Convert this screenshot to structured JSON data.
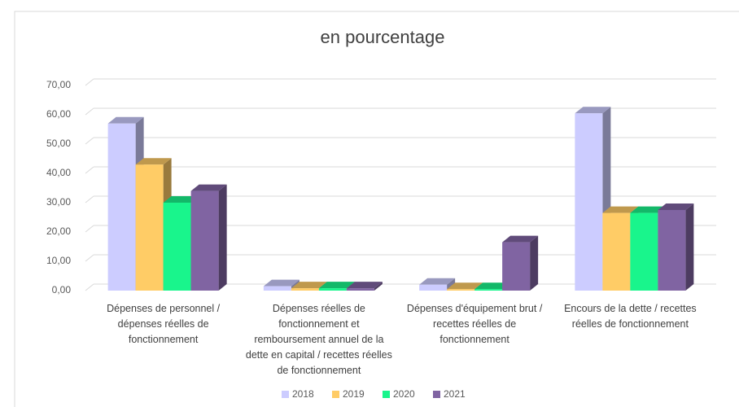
{
  "chart_data": {
    "type": "bar3d",
    "title": "en pourcentage",
    "categories": [
      "Dépenses de personnel / dépenses réelles de fonctionnement",
      "Dépenses réelles de fonctionnement et remboursement annuel de la dette en capital / recettes réelles de fonctionnement",
      "Dépenses d'équipement brut / recettes réelles de fonctionnement",
      "Encours de la dette / recettes réelles de fonctionnement"
    ],
    "series": [
      {
        "name": "2018",
        "color": "#ccccff",
        "values": [
          57,
          1.5,
          2,
          60.5
        ]
      },
      {
        "name": "2019",
        "color": "#ffcc66",
        "values": [
          43,
          0.8,
          0.5,
          26.5
        ]
      },
      {
        "name": "2020",
        "color": "#19f58c",
        "values": [
          30,
          0.8,
          0.5,
          26.5
        ]
      },
      {
        "name": "2021",
        "color": "#8064a2",
        "values": [
          34,
          0.8,
          16.5,
          27.5
        ]
      }
    ],
    "ylim": [
      0,
      70
    ],
    "yticks": [
      {
        "value": 0,
        "label": "0,00"
      },
      {
        "value": 10,
        "label": "10,00"
      },
      {
        "value": 20,
        "label": "20,00"
      },
      {
        "value": 30,
        "label": "30,00"
      },
      {
        "value": 40,
        "label": "40,00"
      },
      {
        "value": 50,
        "label": "50,00"
      },
      {
        "value": 60,
        "label": "60,00"
      },
      {
        "value": 70,
        "label": "70,00"
      }
    ],
    "grid": true
  }
}
